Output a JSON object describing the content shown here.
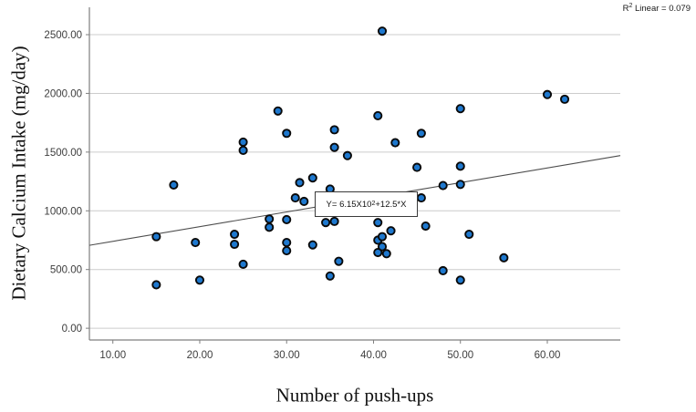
{
  "r2_label": {
    "prefix": "R",
    "sup": "2",
    "suffix": " Linear = 0.079"
  },
  "equation_label": {
    "prefix": "Y= 6.15X10",
    "sup": "2",
    "suffix": " +12.5*X"
  },
  "chart_data": {
    "type": "scatter",
    "title": "",
    "xlabel": "Number of push-ups",
    "ylabel": "Dietary Calcium Intake (mg/day)",
    "x_range": [
      7.3,
      68.4
    ],
    "y_range": [
      -100,
      2733
    ],
    "grid": "horizontal",
    "legend": "none",
    "x_ticks": [
      {
        "value": 10,
        "label": "10.00"
      },
      {
        "value": 20,
        "label": "20.00"
      },
      {
        "value": 30,
        "label": "30.00"
      },
      {
        "value": 40,
        "label": "40.00"
      },
      {
        "value": 50,
        "label": "50.00"
      },
      {
        "value": 60,
        "label": "60.00"
      }
    ],
    "y_ticks": [
      {
        "value": 0,
        "label": "0.00"
      },
      {
        "value": 500,
        "label": "500.00"
      },
      {
        "value": 1000,
        "label": "1000.00"
      },
      {
        "value": 1500,
        "label": "1500.00"
      },
      {
        "value": 2000,
        "label": "2000.00"
      },
      {
        "value": 2500,
        "label": "2500.00"
      }
    ],
    "points": [
      [
        15,
        370
      ],
      [
        15,
        780
      ],
      [
        17,
        1220
      ],
      [
        19.5,
        730
      ],
      [
        20,
        410
      ],
      [
        24,
        800
      ],
      [
        24,
        715
      ],
      [
        25,
        545
      ],
      [
        25,
        1515
      ],
      [
        25,
        1585
      ],
      [
        28,
        860
      ],
      [
        28,
        930
      ],
      [
        29,
        1850
      ],
      [
        30,
        660
      ],
      [
        30,
        730
      ],
      [
        30,
        925
      ],
      [
        30,
        1660
      ],
      [
        31,
        1110
      ],
      [
        31.5,
        1240
      ],
      [
        32,
        1080
      ],
      [
        33,
        710
      ],
      [
        33,
        1280
      ],
      [
        34.5,
        900
      ],
      [
        35,
        445
      ],
      [
        35,
        1185
      ],
      [
        35.5,
        910
      ],
      [
        35.5,
        1540
      ],
      [
        35.5,
        1690
      ],
      [
        36,
        570
      ],
      [
        37,
        1470
      ],
      [
        40.5,
        645
      ],
      [
        40.5,
        750
      ],
      [
        40.5,
        900
      ],
      [
        40.5,
        1810
      ],
      [
        41,
        695
      ],
      [
        41,
        780
      ],
      [
        41,
        2530
      ],
      [
        41.5,
        635
      ],
      [
        42,
        830
      ],
      [
        42.5,
        1580
      ],
      [
        45,
        1370
      ],
      [
        45.5,
        1110
      ],
      [
        45.5,
        1660
      ],
      [
        46,
        870
      ],
      [
        48,
        490
      ],
      [
        48,
        1215
      ],
      [
        50,
        410
      ],
      [
        50,
        1225
      ],
      [
        50,
        1380
      ],
      [
        50,
        1870
      ],
      [
        51,
        800
      ],
      [
        55,
        600
      ],
      [
        60,
        1990
      ],
      [
        62,
        1950
      ]
    ],
    "regression": {
      "slope": 12.5,
      "intercept": 615,
      "r2": 0.079
    },
    "colors": {
      "marker_fill": "#1E78CE",
      "marker_stroke": "#0a0a0a",
      "regression_line": "#4d4d4d",
      "gridline": "#cccccc",
      "axis_line": "#7f7f7f",
      "tick_text": "#3d3d3d"
    }
  }
}
